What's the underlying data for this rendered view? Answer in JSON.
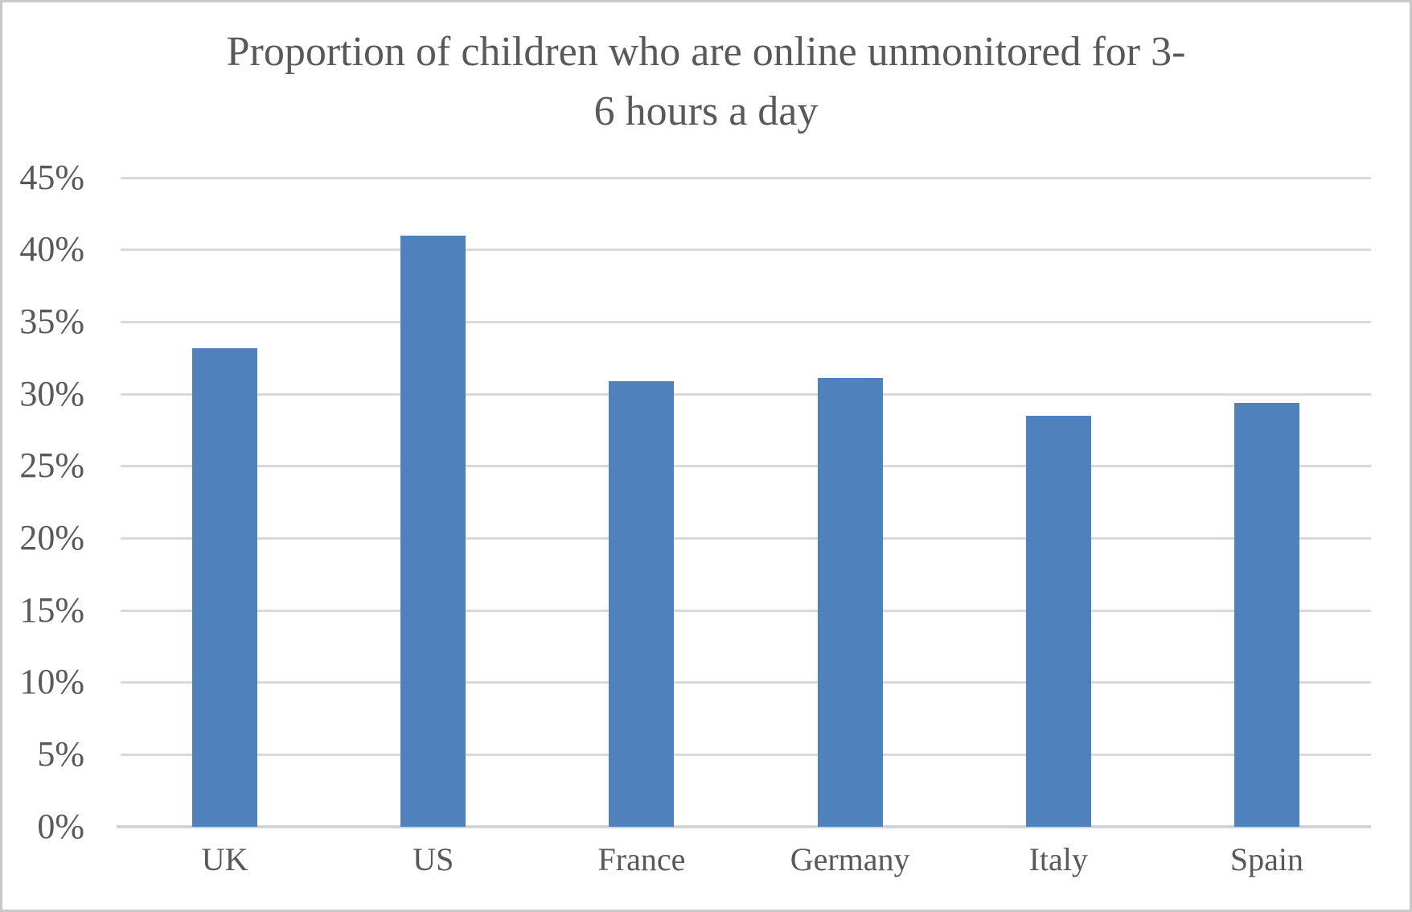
{
  "window": {
    "background_color": "#ffffff",
    "border_color": "#c9c9c9"
  },
  "chart_data": {
    "type": "bar",
    "title": "Proportion of children who are online unmonitored for 3-6 hours a day",
    "title_lines": [
      "Proportion of children who are online unmonitored for 3-",
      "6 hours a day"
    ],
    "categories": [
      "UK",
      "US",
      "France",
      "Germany",
      "Italy",
      "Spain"
    ],
    "values": [
      33.2,
      41.0,
      30.9,
      31.1,
      28.5,
      29.4
    ],
    "value_unit": "%",
    "y_ticks": [
      {
        "label": "0%",
        "value": 0
      },
      {
        "label": "5%",
        "value": 5
      },
      {
        "label": "10%",
        "value": 10
      },
      {
        "label": "15%",
        "value": 15
      },
      {
        "label": "20%",
        "value": 20
      },
      {
        "label": "25%",
        "value": 25
      },
      {
        "label": "30%",
        "value": 30
      },
      {
        "label": "35%",
        "value": 35
      },
      {
        "label": "40%",
        "value": 40
      },
      {
        "label": "45%",
        "value": 45
      }
    ],
    "ylim": [
      0,
      45
    ],
    "xlabel": "",
    "ylabel": "",
    "grid": true,
    "legend": false,
    "bar_color": "#4f81bd",
    "text_color": "#595959",
    "gridline_color": "#d9d9d9",
    "axis_line_color": "#d4d4d4"
  }
}
